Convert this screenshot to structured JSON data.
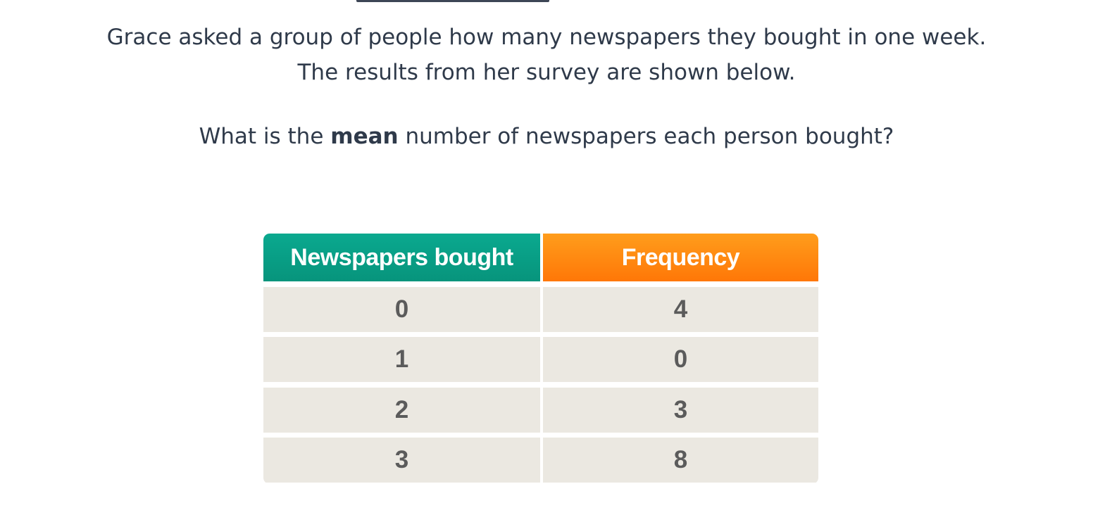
{
  "question": {
    "line1": "Grace asked a group of people how many newspapers they bought in one week.",
    "line2": "The results from her survey are shown below.",
    "line3_before": "What is the ",
    "line3_bold": "mean",
    "line3_after": " number of newspapers each person bought?"
  },
  "table": {
    "headers": [
      "Newspapers bought",
      "Frequency"
    ],
    "header_colors": [
      "#0aa98f",
      "#ff8a12"
    ],
    "rows": [
      [
        "0",
        "4"
      ],
      [
        "1",
        "0"
      ],
      [
        "2",
        "3"
      ],
      [
        "3",
        "8"
      ]
    ]
  }
}
